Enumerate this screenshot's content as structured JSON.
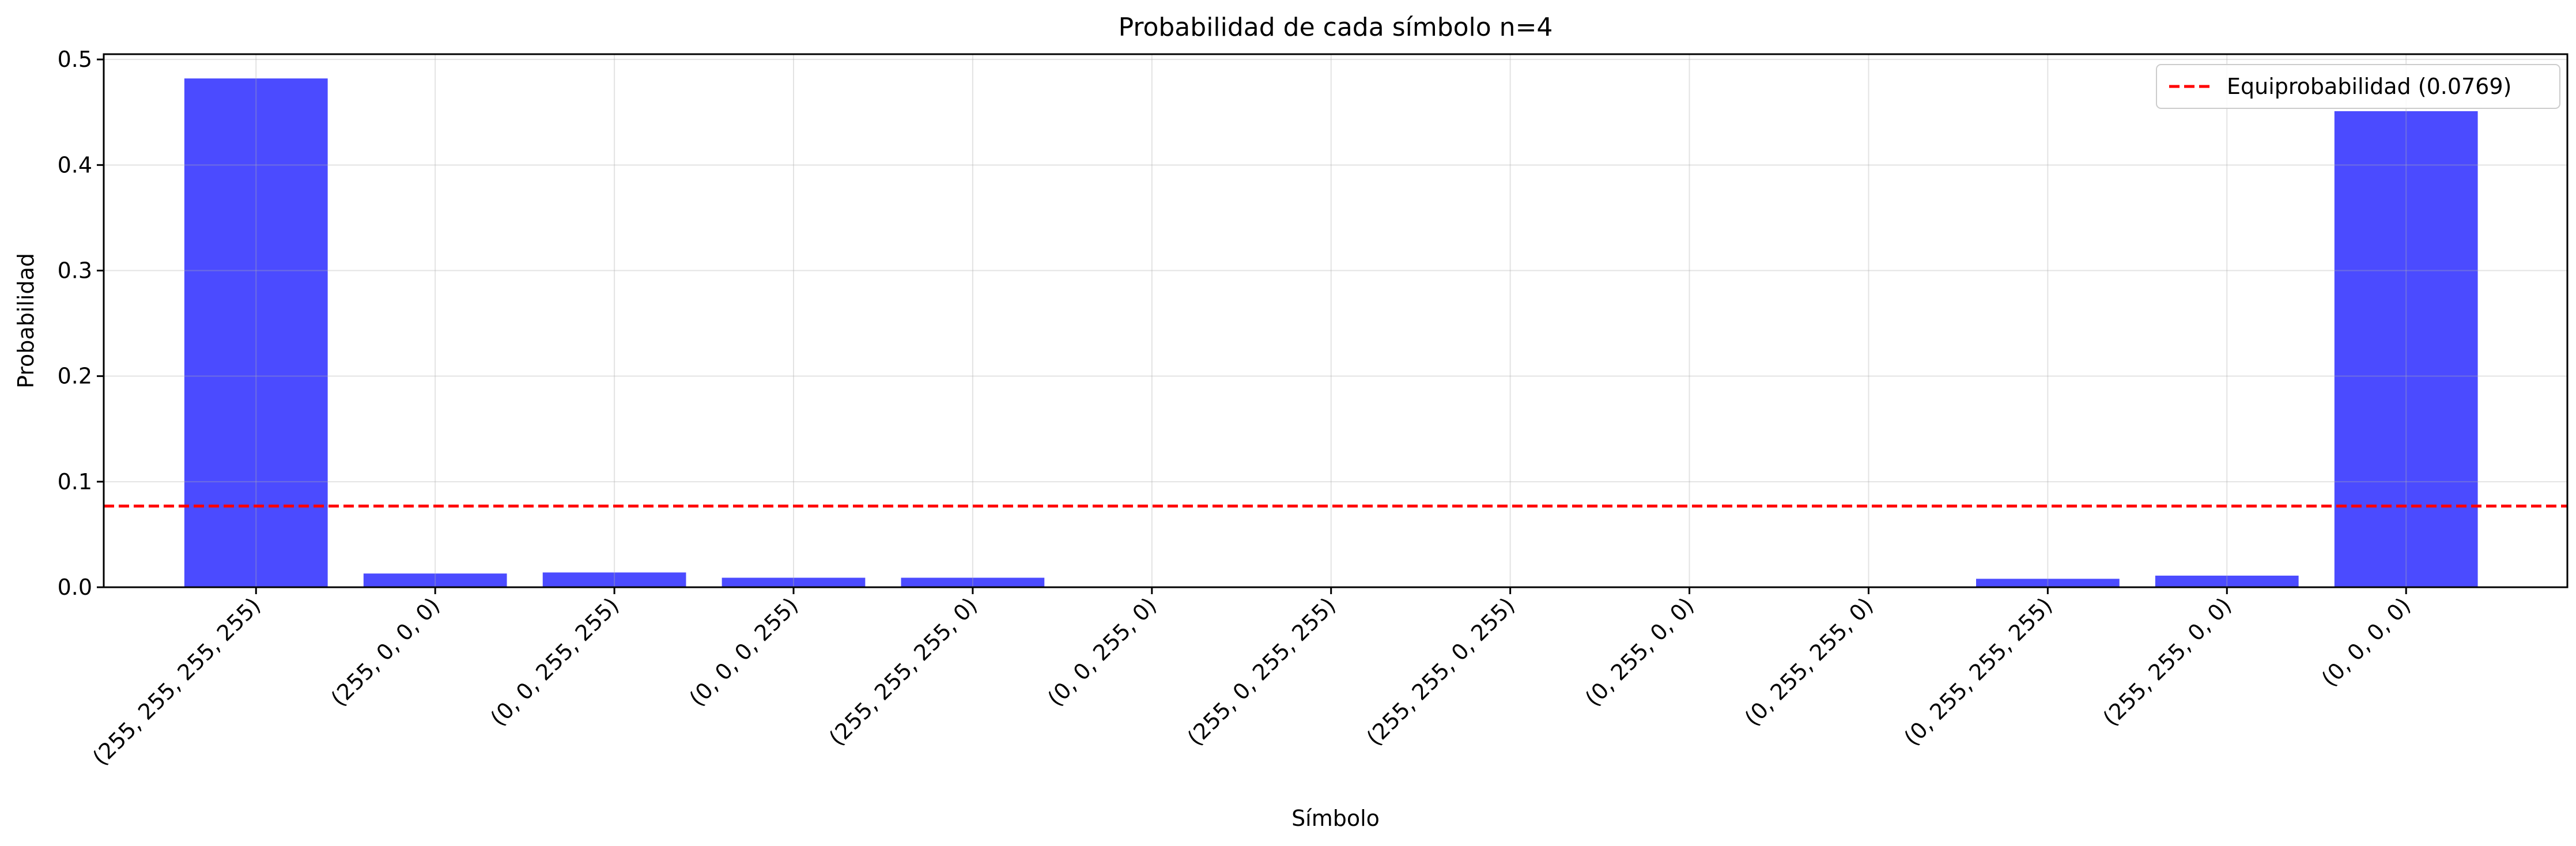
{
  "chart_data": {
    "type": "bar",
    "title": "Probabilidad de cada símbolo n=4",
    "xlabel": "Símbolo",
    "ylabel": "Probabilidad",
    "categories": [
      "(255, 255, 255, 255)",
      "(255, 0, 0, 0)",
      "(0, 0, 255, 255)",
      "(0, 0, 0, 255)",
      "(255, 255, 255, 0)",
      "(0, 0, 255, 0)",
      "(255, 0, 255, 255)",
      "(255, 255, 0, 255)",
      "(0, 255, 0, 0)",
      "(0, 255, 255, 0)",
      "(0, 255, 255, 255)",
      "(255, 255, 0, 0)",
      "(0, 0, 0, 0)"
    ],
    "values": [
      0.482,
      0.013,
      0.014,
      0.009,
      0.009,
      0.0,
      0.0,
      0.0,
      0.0,
      0.0,
      0.008,
      0.011,
      0.451
    ],
    "ylim": [
      0,
      0.505
    ],
    "yticks": [
      "0.0",
      "0.1",
      "0.2",
      "0.3",
      "0.4",
      "0.5"
    ],
    "grid": true,
    "bar_color": "#4B4BFF",
    "reference_line": {
      "value": 0.0769,
      "label": "Equiprobabilidad (0.0769)",
      "color": "#FF0000",
      "style": "dashed"
    },
    "legend_position": "top-right"
  }
}
